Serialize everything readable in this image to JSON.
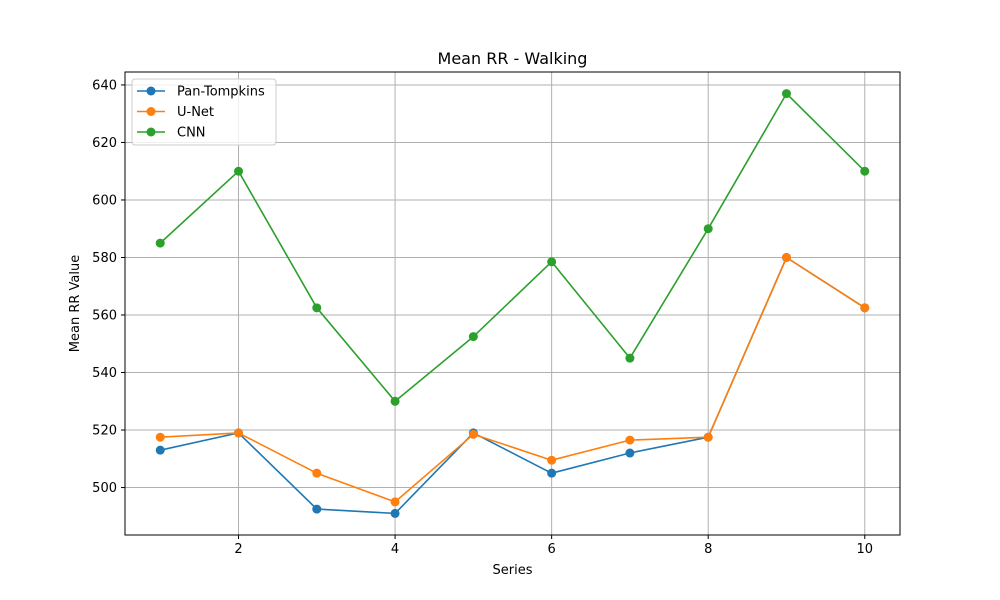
{
  "chart_data": {
    "type": "line",
    "title": "Mean RR - Walking",
    "xlabel": "Series",
    "ylabel": "Mean RR Value",
    "x": [
      1,
      2,
      3,
      4,
      5,
      6,
      7,
      8,
      9,
      10
    ],
    "xlim": [
      0.55,
      10.45
    ],
    "ylim": [
      483.5,
      644.5
    ],
    "xticks": [
      2,
      4,
      6,
      8,
      10
    ],
    "yticks": [
      500,
      520,
      540,
      560,
      580,
      600,
      620,
      640
    ],
    "grid": true,
    "legend_position": "top-left",
    "series": [
      {
        "name": "Pan-Tompkins",
        "color": "#1f77b4",
        "values": [
          513,
          519,
          492.5,
          491,
          519,
          505,
          512,
          517.5,
          580,
          562.5
        ]
      },
      {
        "name": "U-Net",
        "color": "#ff7f0e",
        "values": [
          517.5,
          519,
          505,
          495,
          518.5,
          509.5,
          516.5,
          517.5,
          580,
          562.5
        ]
      },
      {
        "name": "CNN",
        "color": "#2ca02c",
        "values": [
          585,
          610,
          562.5,
          530,
          552.5,
          578.5,
          545,
          590,
          637,
          610
        ]
      }
    ]
  }
}
